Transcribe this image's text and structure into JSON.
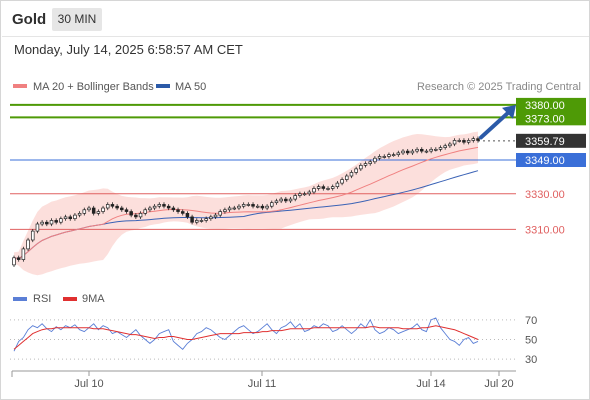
{
  "header": {
    "instrument": "Gold",
    "timeframe": "30 MIN",
    "datetime": "Monday, July 14, 2025 6:58:57 AM CET"
  },
  "legend": {
    "ma20": "MA 20 + Bollinger Bands",
    "ma50": "MA 50",
    "source": "Research © 2025 Trading Central"
  },
  "colors": {
    "bollinger_fill": "#fbd9d6",
    "ma20": "#f08080",
    "ma50": "#3a62b5",
    "target": "#4e9a06",
    "last_price": "#333333",
    "support_line": "#3a6fd8",
    "support_label": "#3a6fd8",
    "level_red": "#e06060",
    "arrow": "#2b5aa8",
    "rsi": "#5b7fd6",
    "rsi_ma": "#e03030"
  },
  "chart_data": [
    {
      "type": "candlestick",
      "x_ticks": [
        "Jul 10",
        "Jul 11",
        "Jul 14",
        "Jul 20"
      ],
      "ylim": [
        3286,
        3385
      ],
      "levels": [
        {
          "value": 3380.0,
          "label": "3380.00",
          "style": "target"
        },
        {
          "value": 3373.0,
          "label": "3373.00",
          "style": "target"
        },
        {
          "value": 3359.79,
          "label": "3359.79",
          "style": "last"
        },
        {
          "value": 3349.0,
          "label": "3349.00",
          "style": "support"
        },
        {
          "value": 3330.0,
          "label": "3330.00",
          "style": "red"
        },
        {
          "value": 3310.0,
          "label": "3310.00",
          "style": "red"
        }
      ],
      "close": [
        3294,
        3293,
        3299,
        3304,
        3309,
        3313,
        3314,
        3313,
        3315,
        3314,
        3316,
        3317,
        3316,
        3318,
        3319,
        3321,
        3322,
        3319,
        3320,
        3322,
        3324,
        3323,
        3322,
        3321,
        3320,
        3318,
        3317,
        3319,
        3321,
        3322,
        3323,
        3324,
        3323,
        3322,
        3321,
        3320,
        3319,
        3317,
        3314,
        3315,
        3315,
        3316,
        3317,
        3318,
        3320,
        3321,
        3322,
        3322,
        3323,
        3324,
        3324,
        3323,
        3323,
        3322,
        3323,
        3325,
        3326,
        3327,
        3326,
        3327,
        3329,
        3330,
        3330,
        3331,
        3333,
        3334,
        3333,
        3333,
        3334,
        3336,
        3338,
        3340,
        3342,
        3344,
        3346,
        3347,
        3348,
        3350,
        3351,
        3351,
        3352,
        3352,
        3353,
        3354,
        3353,
        3354,
        3355,
        3354,
        3354,
        3355,
        3355,
        3356,
        3357,
        3358,
        3360,
        3360,
        3359,
        3360,
        3361,
        3360
      ],
      "annotation": "upward arrow from last price toward 3380.00",
      "ma20": "smoothed moving average (20 periods) with Bollinger band",
      "ma50": "moving average (50 periods)"
    },
    {
      "type": "line",
      "legend": [
        "RSI",
        "9MA"
      ],
      "y_ticks": [
        "70",
        "50",
        "30"
      ],
      "ylim": [
        25,
        78
      ],
      "rsi": [
        38,
        48,
        52,
        60,
        64,
        62,
        66,
        61,
        58,
        63,
        60,
        64,
        62,
        65,
        60,
        58,
        62,
        66,
        60,
        64,
        62,
        56,
        58,
        55,
        52,
        56,
        60,
        54,
        50,
        46,
        50,
        56,
        58,
        60,
        48,
        44,
        40,
        46,
        50,
        56,
        58,
        62,
        60,
        56,
        52,
        50,
        54,
        58,
        62,
        64,
        60,
        56,
        58,
        62,
        66,
        60,
        56,
        62,
        64,
        68,
        62,
        66,
        58,
        60,
        64,
        62,
        66,
        64,
        58,
        60,
        64,
        60,
        56,
        60,
        66,
        62,
        70,
        60,
        56,
        58,
        62,
        60,
        56,
        58,
        60,
        62,
        66,
        60,
        58,
        70,
        72,
        62,
        56,
        50,
        48,
        44,
        50,
        52,
        46,
        48
      ],
      "ma9": [
        40,
        44,
        48,
        52,
        56,
        58,
        60,
        61,
        61,
        62,
        62,
        62,
        62,
        62,
        62,
        62,
        62,
        61,
        61,
        61,
        60,
        59,
        58,
        57,
        56,
        55,
        55,
        54,
        53,
        52,
        51,
        52,
        52,
        53,
        53,
        52,
        51,
        50,
        50,
        51,
        52,
        53,
        54,
        55,
        56,
        56,
        56,
        56,
        56,
        57,
        57,
        57,
        57,
        58,
        58,
        59,
        59,
        59,
        60,
        61,
        61,
        61,
        61,
        61,
        62,
        62,
        62,
        62,
        62,
        62,
        62,
        62,
        62,
        62,
        62,
        62,
        63,
        63,
        62,
        62,
        62,
        62,
        62,
        61,
        61,
        61,
        61,
        62,
        62,
        63,
        64,
        63,
        62,
        61,
        60,
        58,
        56,
        54,
        52,
        50
      ]
    }
  ]
}
